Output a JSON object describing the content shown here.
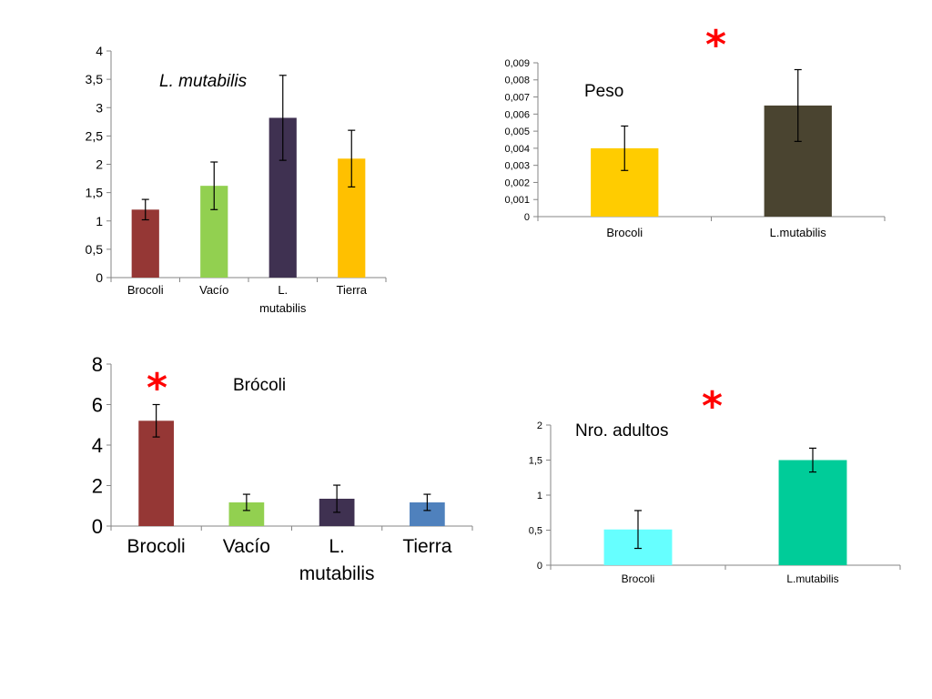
{
  "chart_data": [
    {
      "id": "chart1",
      "type": "bar",
      "title": "L. mutabilis",
      "categories": [
        "Brocoli",
        "Vacío",
        "L.\nmutabilis",
        "Tierra"
      ],
      "values": [
        1.2,
        1.62,
        2.82,
        2.1
      ],
      "errors": [
        0.18,
        0.42,
        0.75,
        0.5
      ],
      "colors": [
        "#953735",
        "#92d050",
        "#3f3151",
        "#ffc000"
      ],
      "yticks": [
        "0",
        "0,5",
        "1",
        "1,5",
        "2",
        "2,5",
        "3",
        "3,5",
        "4"
      ],
      "ylim": [
        0,
        4
      ],
      "grid": false,
      "annotation": ""
    },
    {
      "id": "chart2",
      "type": "bar",
      "title": "Peso",
      "categories": [
        "Brocoli",
        "L.mutabilis"
      ],
      "values": [
        0.004,
        0.0065
      ],
      "errors": [
        0.0013,
        0.0021
      ],
      "colors": [
        "#ffcc00",
        "#4a4430"
      ],
      "yticks": [
        "0",
        "0,001",
        "0,002",
        "0,003",
        "0,004",
        "0,005",
        "0,006",
        "0,007",
        "0,008",
        "0,009"
      ],
      "ylim": [
        0,
        0.009
      ],
      "grid": false,
      "annotation": "*"
    },
    {
      "id": "chart3",
      "type": "bar",
      "title": "Brócoli",
      "categories": [
        "Brocoli",
        "Vacío",
        "L.\nmutabilis",
        "Tierra"
      ],
      "values": [
        5.2,
        1.17,
        1.35,
        1.17
      ],
      "errors": [
        0.8,
        0.4,
        0.67,
        0.4
      ],
      "colors": [
        "#953735",
        "#92d050",
        "#3f3151",
        "#4f81bd"
      ],
      "yticks": [
        "0",
        "2",
        "4",
        "6",
        "8"
      ],
      "ylim": [
        0,
        8
      ],
      "grid": false,
      "annotation": "*"
    },
    {
      "id": "chart4",
      "type": "bar",
      "title": "Nro. adultos",
      "categories": [
        "Brocoli",
        "L.mutabilis"
      ],
      "values": [
        0.51,
        1.5
      ],
      "errors": [
        0.27,
        0.17
      ],
      "colors": [
        "#66ffff",
        "#00cc99"
      ],
      "yticks": [
        "0",
        "0,5",
        "1",
        "1,5",
        "2"
      ],
      "ylim": [
        0,
        2
      ],
      "grid": false,
      "annotation": "*"
    }
  ]
}
